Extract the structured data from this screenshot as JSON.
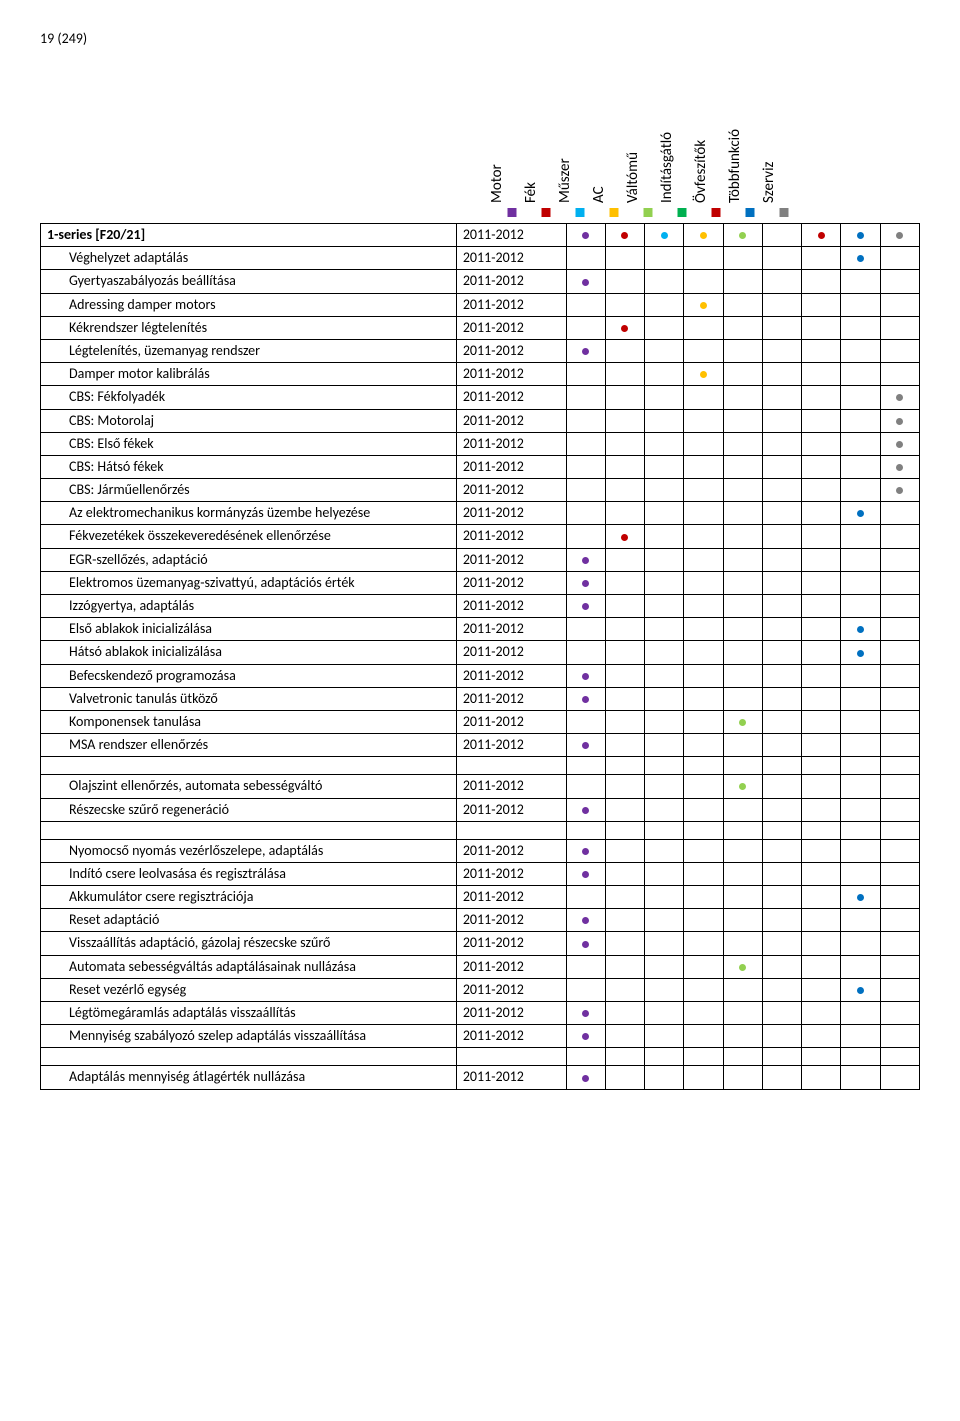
{
  "page_number": "19 (249)",
  "columns": [
    {
      "label": "Motor",
      "color": "#7030a0"
    },
    {
      "label": "Fék",
      "color": "#c00000"
    },
    {
      "label": "Műszer",
      "color": "#00b0f0"
    },
    {
      "label": "AC",
      "color": "#ffc000"
    },
    {
      "label": "Váltómű",
      "color": "#92d050"
    },
    {
      "label": "Indításgátló",
      "color": "#00b050"
    },
    {
      "label": "Övfeszítők",
      "color": "#c00000"
    },
    {
      "label": "Többfunkció",
      "color": "#0070c0"
    },
    {
      "label": "Szerviz",
      "color": "#808080"
    }
  ],
  "rows": [
    {
      "name": "1-series [F20/21]",
      "year": "2011-2012",
      "bold": true,
      "dots": [
        0,
        1,
        2,
        3,
        4,
        6,
        7,
        8
      ]
    },
    {
      "name": "Véghelyzet adaptálás",
      "year": "2011-2012",
      "indent": true,
      "dots": [
        7
      ]
    },
    {
      "name": "Gyertyaszabályozás beállítása",
      "year": "2011-2012",
      "indent": true,
      "dots": [
        0
      ]
    },
    {
      "name": "Adressing damper motors",
      "year": "2011-2012",
      "indent": true,
      "dots": [
        3
      ]
    },
    {
      "name": "Kékrendszer légtelenítés",
      "year": "2011-2012",
      "indent": true,
      "dots": [
        1
      ]
    },
    {
      "name": "Légtelenítés, üzemanyag rendszer",
      "year": "2011-2012",
      "indent": true,
      "dots": [
        0
      ]
    },
    {
      "name": "Damper motor kalibrálás",
      "year": "2011-2012",
      "indent": true,
      "dots": [
        3
      ]
    },
    {
      "name": "CBS: Fékfolyadék",
      "year": "2011-2012",
      "indent": true,
      "dots": [
        8
      ]
    },
    {
      "name": "CBS: Motorolaj",
      "year": "2011-2012",
      "indent": true,
      "dots": [
        8
      ]
    },
    {
      "name": "CBS: Első fékek",
      "year": "2011-2012",
      "indent": true,
      "dots": [
        8
      ]
    },
    {
      "name": "CBS: Hátsó fékek",
      "year": "2011-2012",
      "indent": true,
      "dots": [
        8
      ]
    },
    {
      "name": "CBS: Járműellenőrzés",
      "year": "2011-2012",
      "indent": true,
      "dots": [
        8
      ]
    },
    {
      "name": "Az elektromechanikus kormányzás üzembe helyezése",
      "year": "2011-2012",
      "indent": true,
      "dots": [
        7
      ]
    },
    {
      "name": "Fékvezetékek összekeveredésének ellenőrzése",
      "year": "2011-2012",
      "indent": true,
      "dots": [
        1
      ]
    },
    {
      "name": "EGR-szellőzés, adaptáció",
      "year": "2011-2012",
      "indent": true,
      "dots": [
        0
      ]
    },
    {
      "name": "Elektromos üzemanyag-szivattyú, adaptációs érték",
      "year": "2011-2012",
      "indent": true,
      "dots": [
        0
      ]
    },
    {
      "name": "Izzógyertya, adaptálás",
      "year": "2011-2012",
      "indent": true,
      "dots": [
        0
      ]
    },
    {
      "name": "Első ablakok inicializálása",
      "year": "2011-2012",
      "indent": true,
      "dots": [
        7
      ]
    },
    {
      "name": "Hátsó ablakok inicializálása",
      "year": "2011-2012",
      "indent": true,
      "dots": [
        7
      ]
    },
    {
      "name": "Befecskendező programozása",
      "year": "2011-2012",
      "indent": true,
      "dots": [
        0
      ]
    },
    {
      "name": "Valvetronic tanulás ütköző",
      "year": "2011-2012",
      "indent": true,
      "dots": [
        0
      ]
    },
    {
      "name": "Komponensek tanulása",
      "year": "2011-2012",
      "indent": true,
      "dots": [
        4
      ]
    },
    {
      "name": "MSA rendszer ellenőrzés",
      "year": "2011-2012",
      "indent": true,
      "dots": [
        0
      ]
    },
    {
      "gap": true
    },
    {
      "name": "Olajszint ellenőrzés, automata sebességváltó",
      "year": "2011-2012",
      "indent": true,
      "dots": [
        4
      ]
    },
    {
      "name": "Részecske szűrő regeneráció",
      "year": "2011-2012",
      "indent": true,
      "dots": [
        0
      ]
    },
    {
      "gap": true
    },
    {
      "name": "Nyomocső nyomás vezérlőszelepe, adaptálás",
      "year": "2011-2012",
      "indent": true,
      "dots": [
        0
      ]
    },
    {
      "name": "Indító csere leolvasása és regisztrálása",
      "year": "2011-2012",
      "indent": true,
      "dots": [
        0
      ]
    },
    {
      "name": "Akkumulátor csere regisztrációja",
      "year": "2011-2012",
      "indent": true,
      "dots": [
        7
      ]
    },
    {
      "name": "Reset adaptáció",
      "year": "2011-2012",
      "indent": true,
      "dots": [
        0
      ]
    },
    {
      "name": "Visszaállítás adaptáció, gázolaj részecske szűrő",
      "year": "2011-2012",
      "indent": true,
      "dots": [
        0
      ]
    },
    {
      "name": "Automata sebességváltás adaptálásainak nullázása",
      "year": "2011-2012",
      "indent": true,
      "dots": [
        4
      ]
    },
    {
      "name": "Reset vezérlő egység",
      "year": "2011-2012",
      "indent": true,
      "dots": [
        7
      ]
    },
    {
      "name": "Légtömegáramlás adaptálás visszaállítás",
      "year": "2011-2012",
      "indent": true,
      "dots": [
        0
      ]
    },
    {
      "name": "Mennyiség szabályozó szelep adaptálás visszaállítása",
      "year": "2011-2012",
      "indent": true,
      "dots": [
        0
      ]
    },
    {
      "gap": true
    },
    {
      "name": "Adaptálás mennyiség átlagérték nullázása",
      "year": "2011-2012",
      "indent": true,
      "dots": [
        0
      ]
    }
  ]
}
